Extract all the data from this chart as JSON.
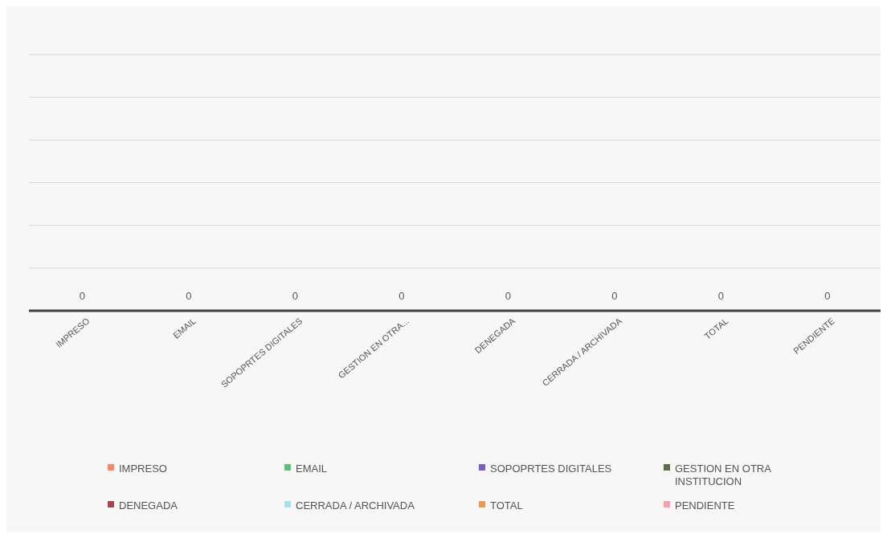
{
  "chart_data": {
    "type": "other",
    "categories": [
      "IMPRESO",
      "EMAIL",
      "SOPOPRTES   DIGITALES",
      "GESTION EN OTRA...",
      "DENEGADA",
      "CERRADA / ARCHIVADA",
      "TOTAL",
      "PENDIENTE"
    ],
    "series": [
      {
        "name": "IMPRESO",
        "color": "#f4896b",
        "values": [
          0,
          null,
          null,
          null,
          null,
          null,
          null,
          null
        ]
      },
      {
        "name": "EMAIL",
        "color": "#5cc27a",
        "values": [
          null,
          0,
          null,
          null,
          null,
          null,
          null,
          null
        ]
      },
      {
        "name": "SOPOPRTES   DIGITALES",
        "color": "#7a5cc2",
        "values": [
          null,
          null,
          0,
          null,
          null,
          null,
          null,
          null
        ]
      },
      {
        "name": "GESTION EN OTRA INSTITUCION",
        "color": "#5a6e4a",
        "values": [
          null,
          null,
          null,
          0,
          null,
          null,
          null,
          null
        ]
      },
      {
        "name": "DENEGADA",
        "color": "#a5474f",
        "values": [
          null,
          null,
          null,
          null,
          0,
          null,
          null,
          null
        ]
      },
      {
        "name": "CERRADA / ARCHIVADA",
        "color": "#a8e0ee",
        "values": [
          null,
          null,
          null,
          null,
          null,
          0,
          null,
          null
        ]
      },
      {
        "name": "TOTAL",
        "color": "#eb9a4e",
        "values": [
          null,
          null,
          null,
          null,
          null,
          null,
          0,
          null
        ]
      },
      {
        "name": "PENDIENTE",
        "color": "#f7a0b0",
        "values": [
          null,
          null,
          null,
          null,
          null,
          null,
          null,
          0
        ]
      }
    ],
    "data_labels": true,
    "legend": "bottom"
  }
}
